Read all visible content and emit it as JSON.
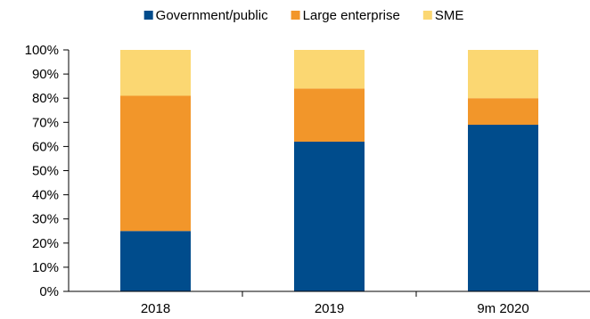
{
  "chart_data": {
    "type": "bar",
    "stacked": true,
    "categories": [
      "2018",
      "2019",
      "9m 2020"
    ],
    "series": [
      {
        "name": "Government/public",
        "color": "#004C8C",
        "values": [
          25,
          62,
          69
        ]
      },
      {
        "name": "Large enterprise",
        "color": "#F2962A",
        "values": [
          56,
          22,
          11
        ]
      },
      {
        "name": "SME",
        "color": "#FBD772",
        "values": [
          19,
          16,
          20
        ]
      }
    ],
    "ylim": [
      0,
      100
    ],
    "yticks": [
      "0%",
      "10%",
      "20%",
      "30%",
      "40%",
      "50%",
      "60%",
      "70%",
      "80%",
      "90%",
      "100%"
    ],
    "grid": false,
    "legend_position": "top"
  }
}
